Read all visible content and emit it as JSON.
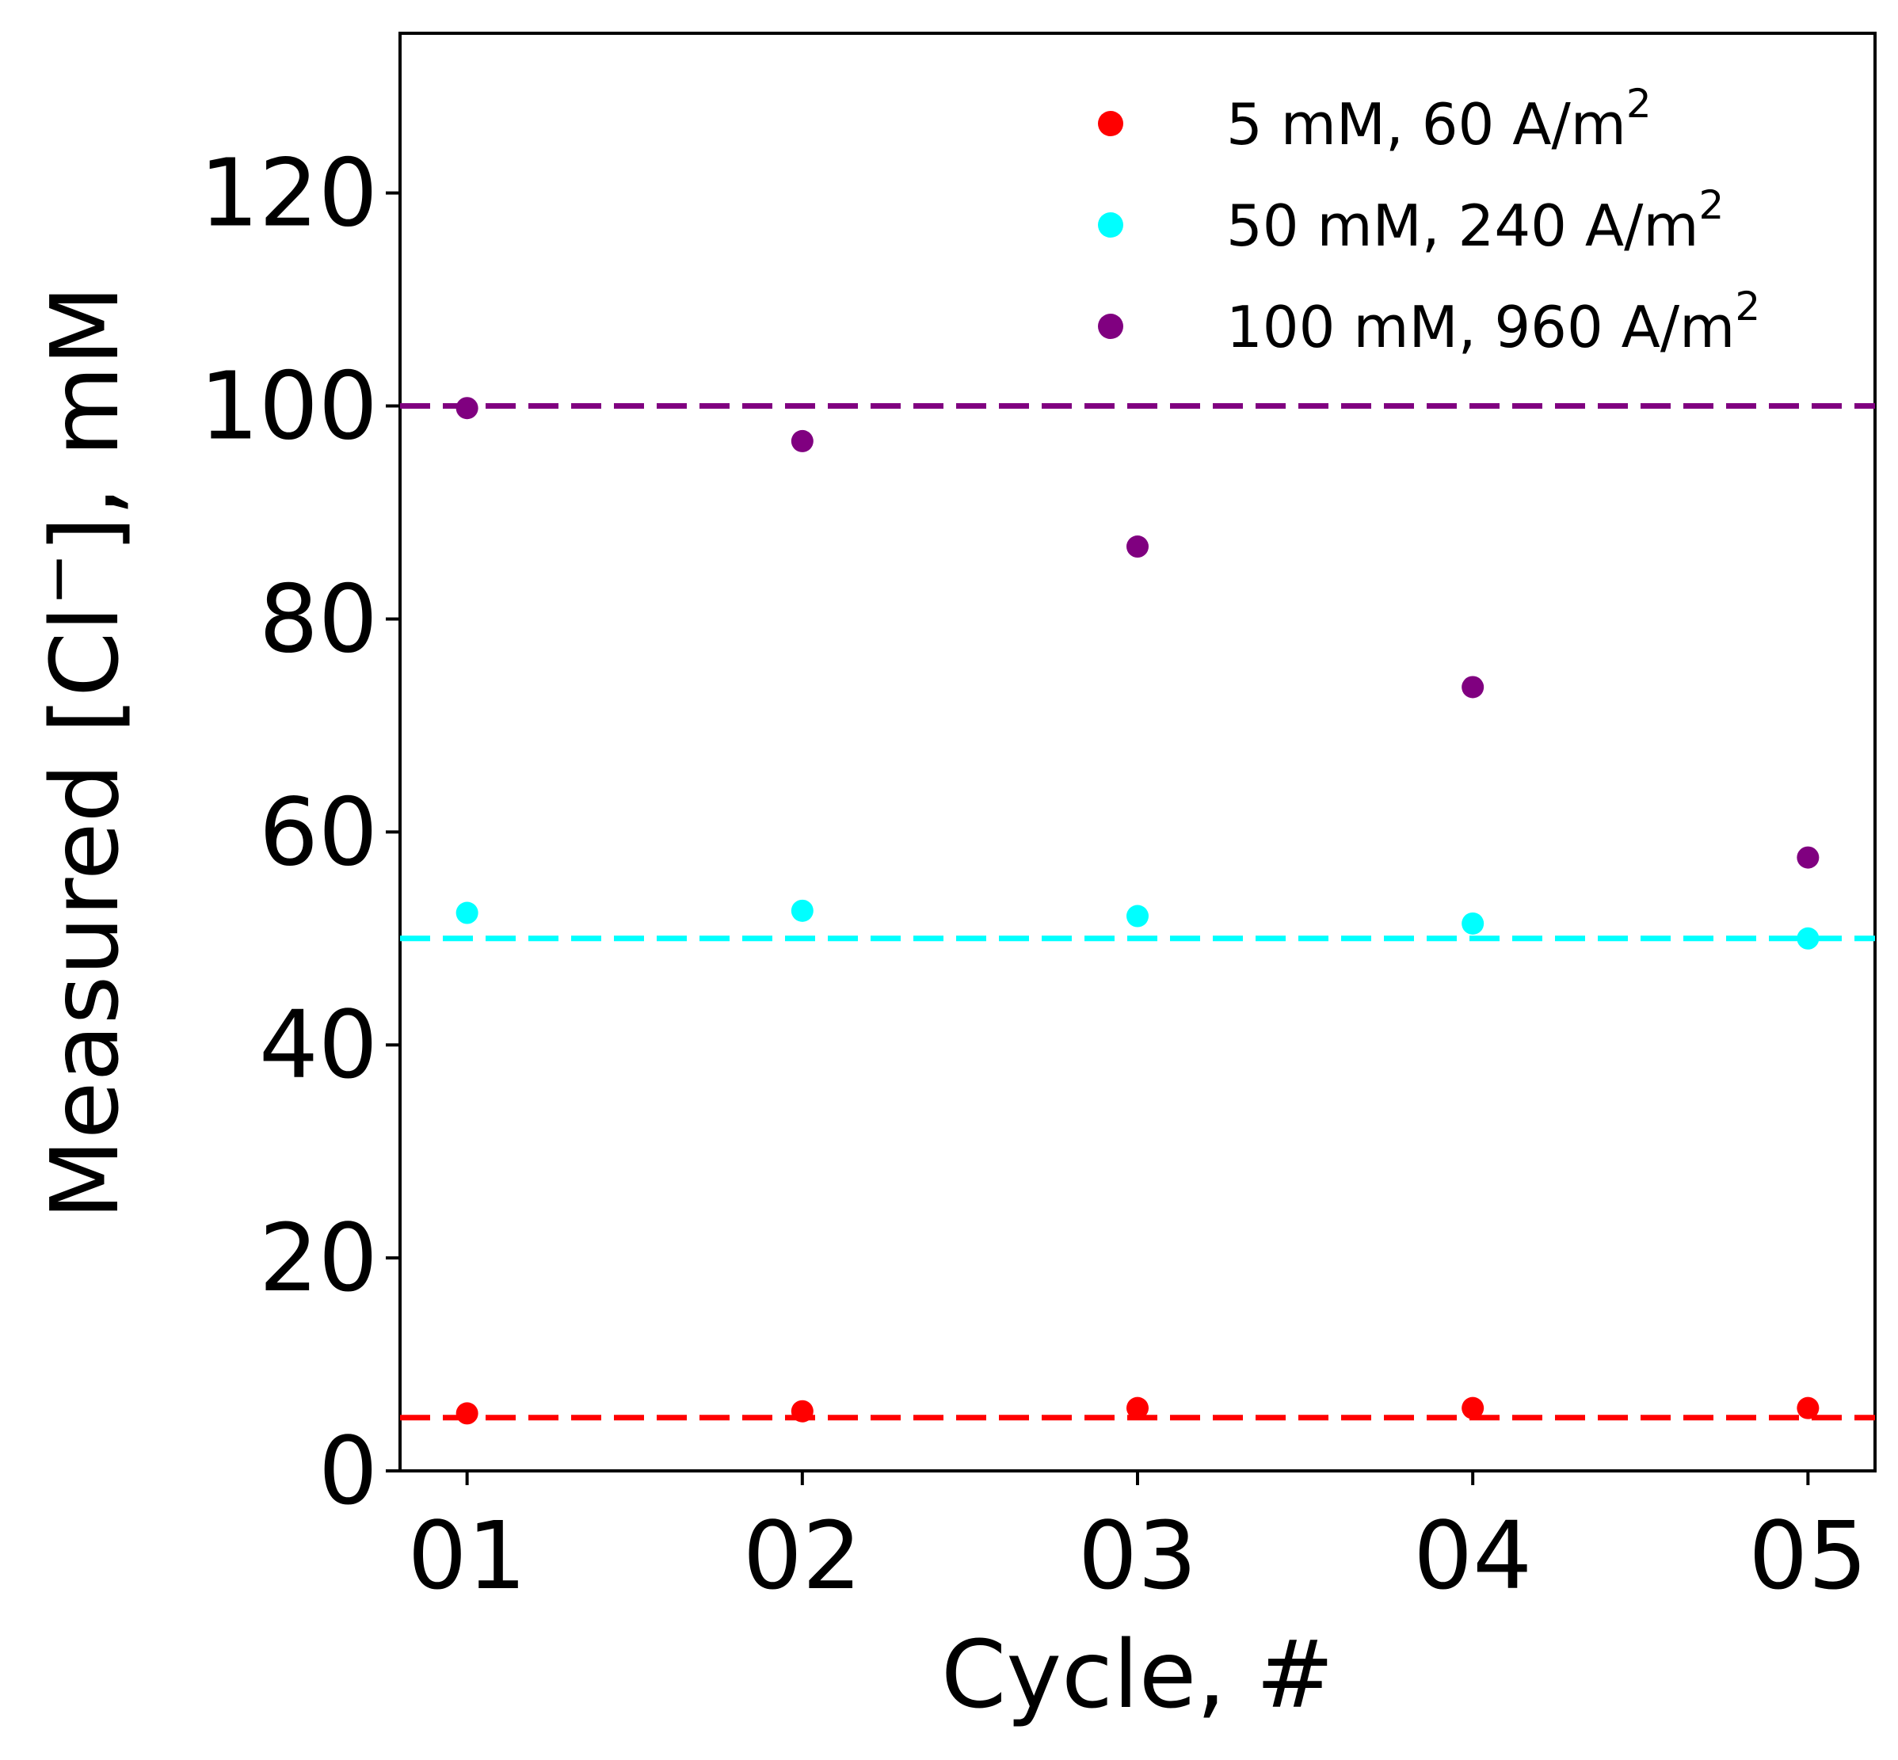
{
  "chart_data": {
    "type": "scatter",
    "xlabel": "Cycle, #",
    "ylabel_main": "Measured [Cl",
    "ylabel_sup": "−",
    "ylabel_tail": "], mM",
    "x_categories": [
      "01",
      "02",
      "03",
      "04",
      "05"
    ],
    "x_values": [
      1,
      2,
      3,
      4,
      5
    ],
    "xlim": [
      0.8,
      5.2
    ],
    "ylim": [
      0,
      135
    ],
    "yticks": [
      0,
      20,
      40,
      60,
      80,
      100,
      120
    ],
    "grid": false,
    "legend_position": "top-right",
    "series": [
      {
        "name_main": "5 mM, 60 A/m",
        "name_sup": "2",
        "color": "#ff0000",
        "values": [
          5.4,
          5.6,
          5.9,
          5.9,
          5.9
        ],
        "reference_line": 5
      },
      {
        "name_main": "50 mM, 240 A/m",
        "name_sup": "2",
        "color": "#00ffff",
        "values": [
          52.4,
          52.6,
          52.1,
          51.4,
          50.0
        ],
        "reference_line": 50
      },
      {
        "name_main": "100 mM, 960 A/m",
        "name_sup": "2",
        "color": "#800080",
        "values": [
          99.8,
          96.7,
          86.8,
          73.6,
          57.6
        ],
        "reference_line": 100
      }
    ]
  }
}
